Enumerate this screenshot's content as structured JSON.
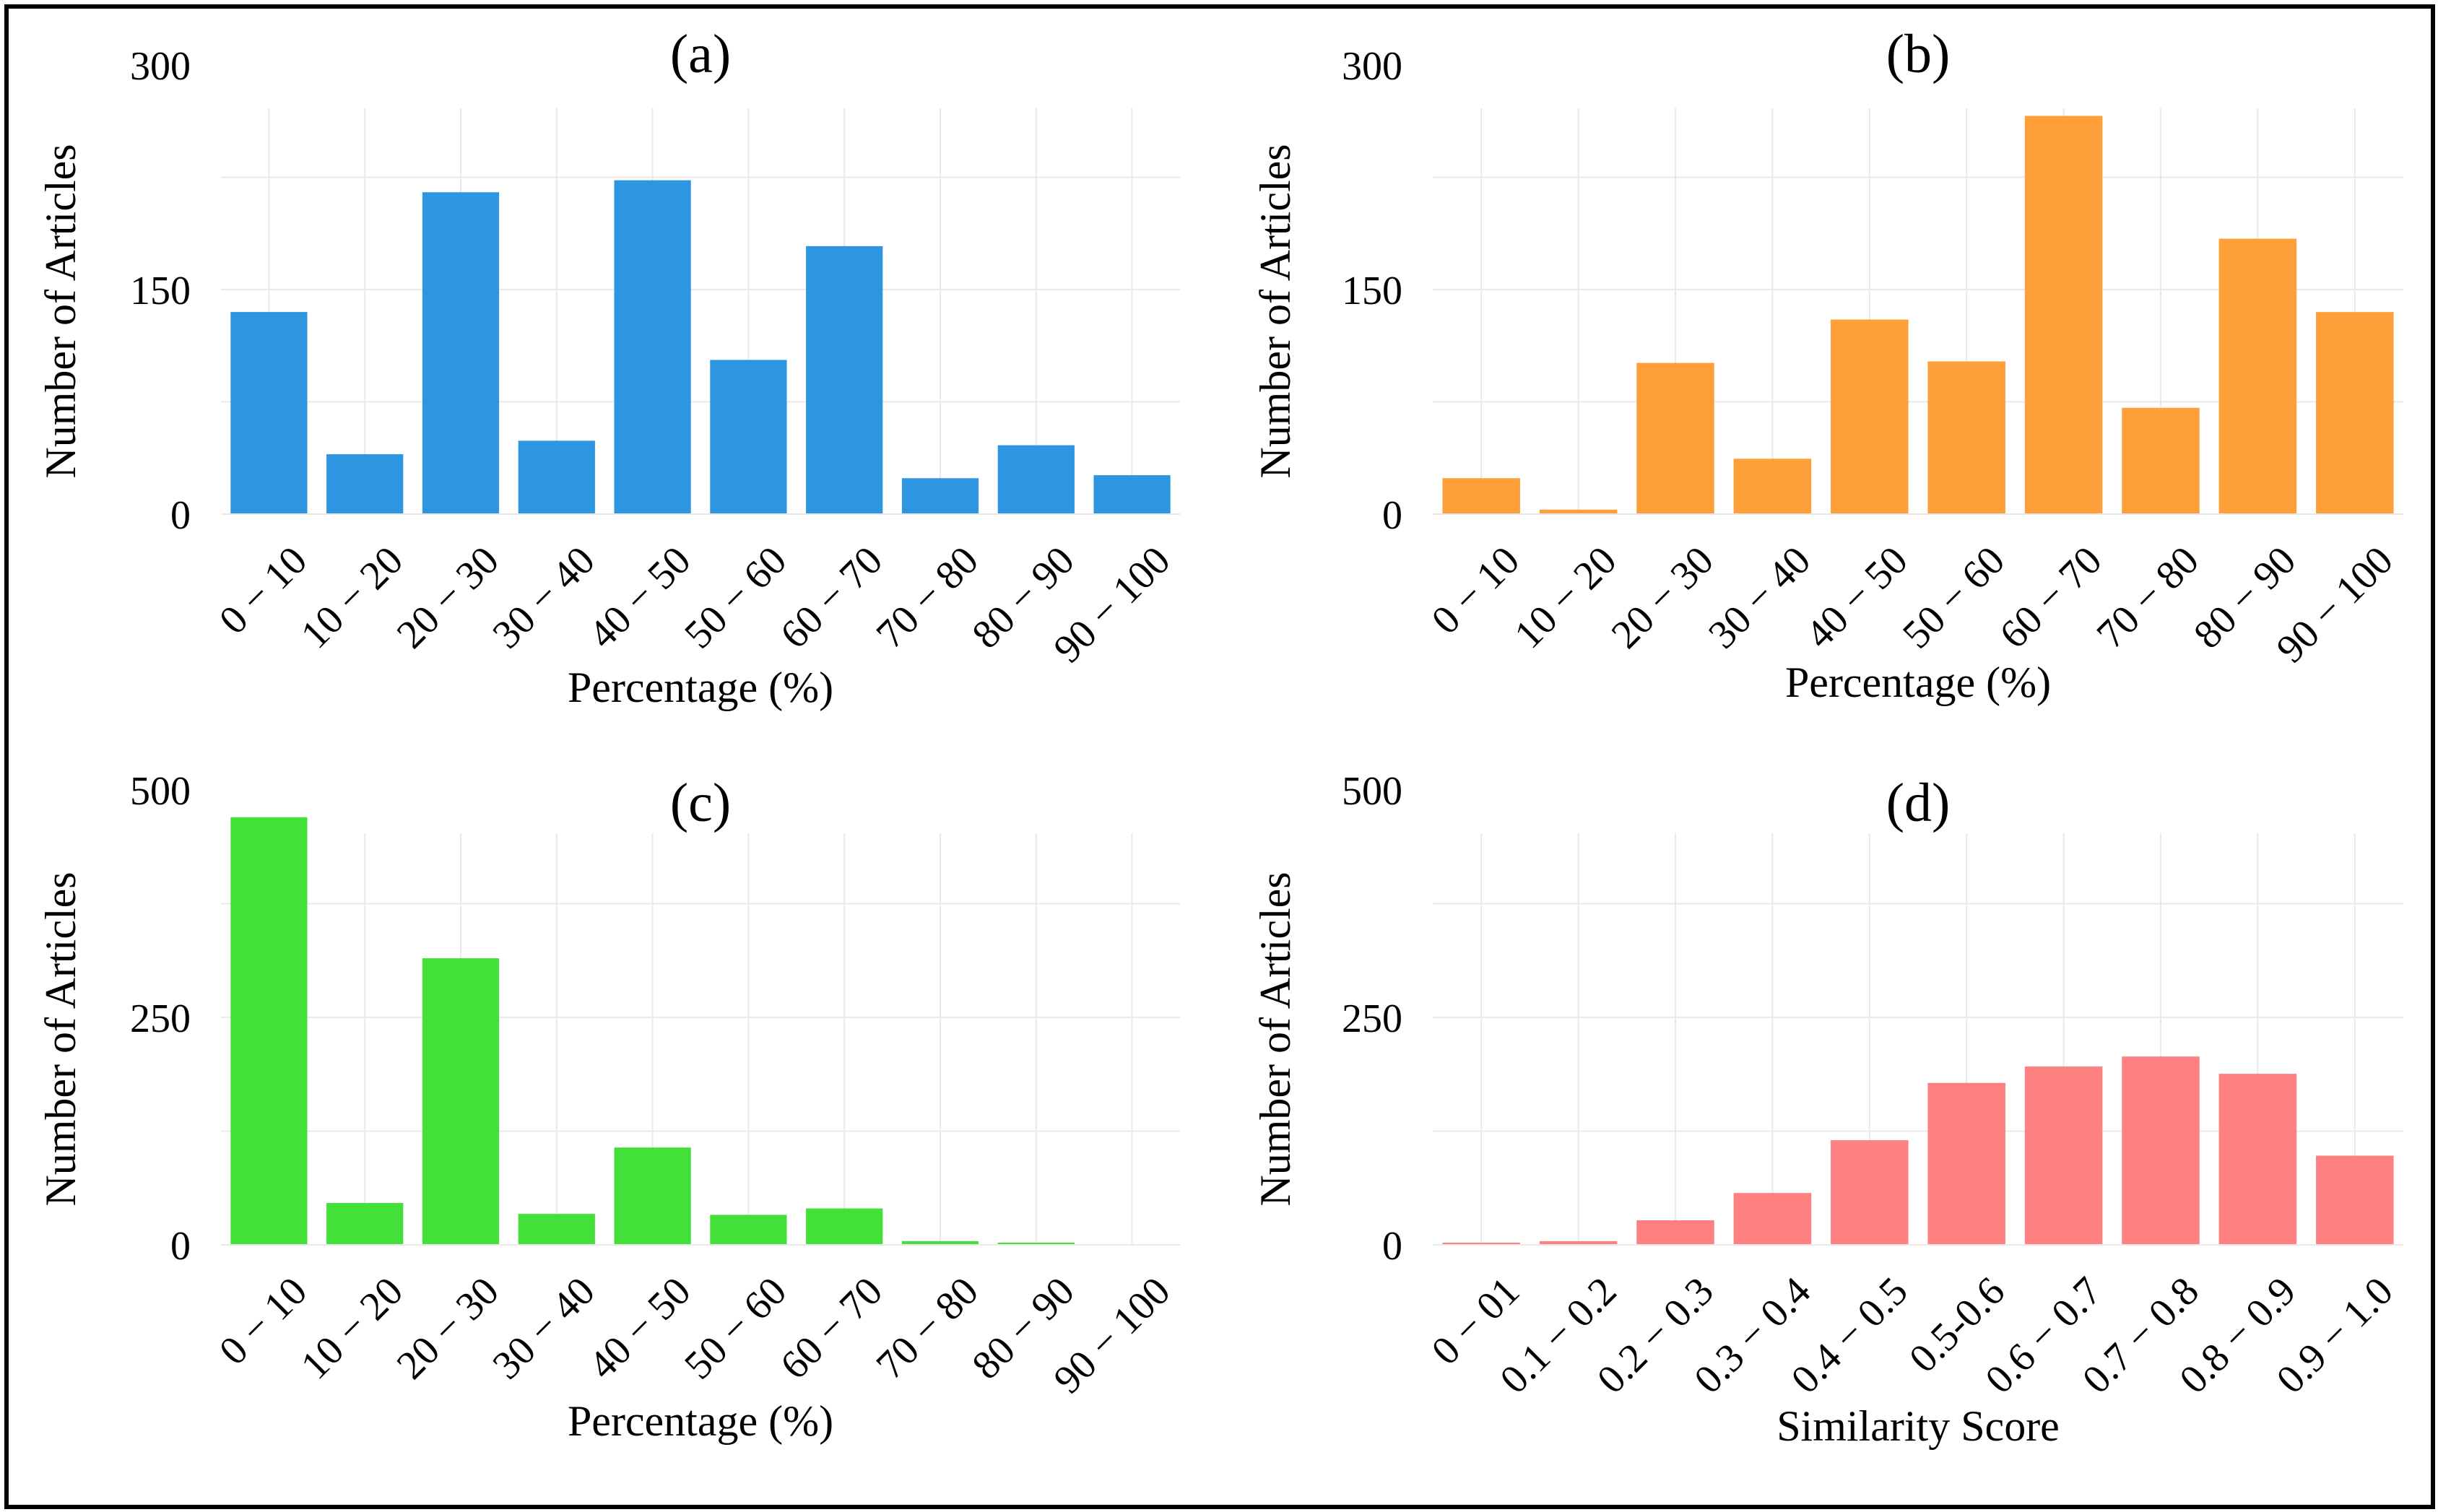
{
  "figure": {
    "background": "#ffffff",
    "grid_color": "#e9e9e9"
  },
  "chart_data": [
    {
      "type": "bar",
      "panel": "(a)",
      "title": "(a)",
      "xlabel": "Percentage (%)",
      "ylabel": "Number of Articles",
      "ylim": [
        0,
        300
      ],
      "yticks": [
        0,
        150,
        300
      ],
      "ytick_labels": [
        "0",
        "150",
        "300"
      ],
      "grid": true,
      "color": "#2e96e0",
      "categories": [
        "0 − 10",
        "10 − 20",
        "20 − 30",
        "30 − 40",
        "40 − 50",
        "50 − 60",
        "60 − 70",
        "70 − 80",
        "80 − 90",
        "90 − 100"
      ],
      "values": [
        135,
        40,
        215,
        49,
        223,
        103,
        179,
        24,
        46,
        26
      ]
    },
    {
      "type": "bar",
      "panel": "(b)",
      "title": "(b)",
      "xlabel": "Percentage (%)",
      "ylabel": "Number of Articles",
      "ylim": [
        0,
        300
      ],
      "yticks": [
        0,
        150,
        300
      ],
      "ytick_labels": [
        "0",
        "150",
        "300"
      ],
      "grid": true,
      "color": "#ff9f3a",
      "categories": [
        "0 − 10",
        "10 − 20",
        "20 − 30",
        "30 − 40",
        "40 − 50",
        "50 − 60",
        "60 − 70",
        "70 − 80",
        "80 − 90",
        "90 − 100"
      ],
      "values": [
        24,
        3,
        101,
        37,
        130,
        102,
        266,
        71,
        184,
        135
      ]
    },
    {
      "type": "bar",
      "panel": "(c)",
      "title": "(c)",
      "xlabel": "Percentage (%)",
      "ylabel": "Number of Articles",
      "ylim": [
        0,
        500
      ],
      "yticks": [
        0,
        250,
        500
      ],
      "ytick_labels": [
        "0",
        "250",
        "500"
      ],
      "grid": true,
      "color": "#44e03a",
      "categories": [
        "0 − 10",
        "10 − 20",
        "20 − 30",
        "30 − 40",
        "40 − 50",
        "50 − 60",
        "60 − 70",
        "70 − 80",
        "80 − 90",
        "90 − 100"
      ],
      "values": [
        470,
        46,
        315,
        34,
        107,
        33,
        40,
        4,
        1,
        0
      ]
    },
    {
      "type": "bar",
      "panel": "(d)",
      "title": "(d)",
      "xlabel": "Similarity Score",
      "ylabel": "Number of Articles",
      "ylim": [
        0,
        500
      ],
      "yticks": [
        0,
        250,
        500
      ],
      "ytick_labels": [
        "0",
        "250",
        "500"
      ],
      "grid": true,
      "color": "#ff8080",
      "categories": [
        "0 − 01",
        "0.1 − 0.2",
        "0.2 − 0.3",
        "0.3 − 0.4",
        "0.4 − 0.5",
        "0.5-0.6",
        "0.6 − 0.7",
        "0.7 − 0.8",
        "0.8 − 0.9",
        "0.9 − 1.0"
      ],
      "values": [
        1,
        4,
        27,
        57,
        115,
        178,
        196,
        207,
        188,
        98
      ]
    }
  ]
}
